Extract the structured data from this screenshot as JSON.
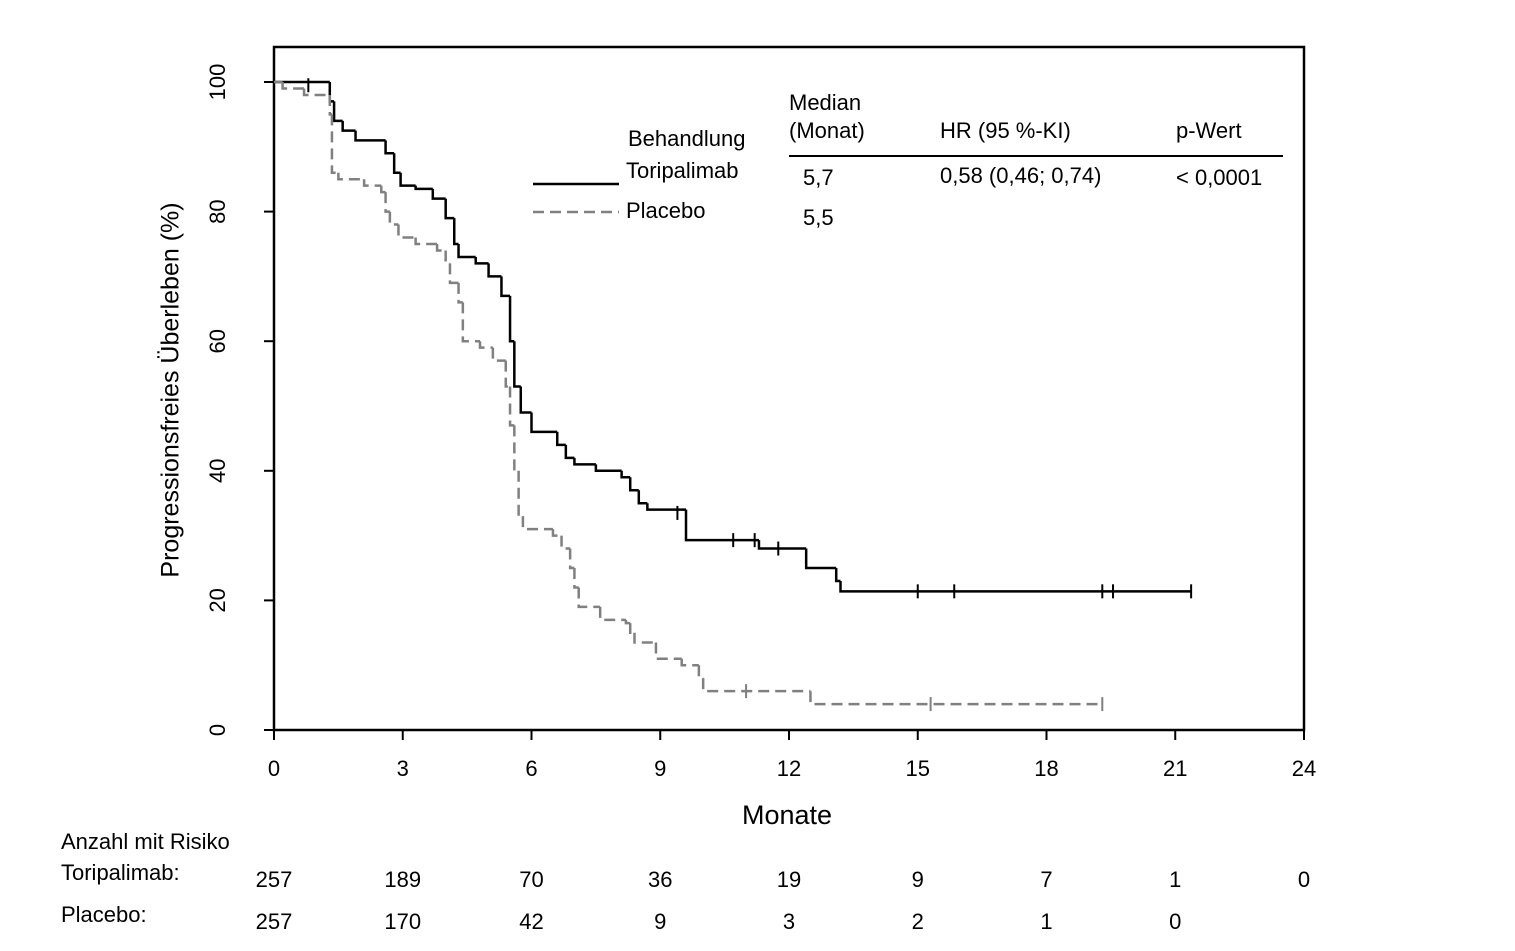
{
  "chart_data": {
    "type": "km",
    "ylabel": "Progressionsfreies Überleben (%)",
    "xlabel": "Monate",
    "xlim": [
      0,
      24
    ],
    "ylim": [
      0,
      105.4
    ],
    "xticks": [
      0,
      3,
      6,
      9,
      12,
      15,
      18,
      21,
      24
    ],
    "yticks": [
      0,
      20,
      40,
      60,
      80,
      100
    ],
    "legend_title": "Behandlung",
    "median_header": [
      "Median",
      "(Monat)"
    ],
    "hr_header": "HR (95 %-KI)",
    "p_header": "p-Wert",
    "series": [
      {
        "name": "Toripalimab",
        "color": "#000000",
        "dashed": false,
        "median": "5,7",
        "hr": "0,58 (0,46; 0,74)",
        "p": "< 0,0001",
        "x": [
          0,
          1.3,
          1.4,
          1.6,
          1.9,
          2.6,
          2.8,
          2.95,
          3.3,
          3.7,
          4.0,
          4.2,
          4.3,
          4.7,
          5.0,
          5.3,
          5.5,
          5.6,
          5.75,
          6.0,
          6.6,
          6.8,
          7.0,
          7.5,
          8.1,
          8.3,
          8.5,
          8.7,
          9.6,
          11.3,
          12.4,
          13.1,
          13.2,
          21.37
        ],
        "values": [
          100,
          97,
          94,
          92.5,
          91,
          89,
          86,
          84,
          83.5,
          82,
          79,
          75,
          73,
          72,
          70,
          67,
          60,
          53,
          49,
          46,
          44,
          42,
          41,
          40,
          39,
          37,
          35,
          34,
          29.3,
          28,
          25,
          23,
          21.4,
          21.4
        ],
        "censor_x": [
          0.8,
          9.4,
          10.7,
          11.2,
          11.75,
          15.0,
          15.85,
          19.3,
          19.55,
          21.37
        ],
        "censor_values": [
          99.5,
          33.5,
          29.3,
          29.3,
          28,
          21.4,
          21.4,
          21.4,
          21.4,
          21.4
        ]
      },
      {
        "name": "Placebo",
        "color": "#808080",
        "dashed": true,
        "median": "5,5",
        "x": [
          0,
          0.2,
          0.7,
          1.3,
          1.35,
          1.5,
          2.1,
          2.5,
          2.6,
          2.7,
          2.9,
          3.3,
          3.8,
          4.0,
          4.1,
          4.3,
          4.4,
          4.8,
          5.1,
          5.4,
          5.5,
          5.6,
          5.7,
          5.8,
          6.5,
          6.7,
          6.9,
          7.0,
          7.1,
          7.6,
          8.2,
          8.3,
          8.4,
          8.9,
          9.5,
          9.9,
          10.0,
          12.5,
          19.3
        ],
        "values": [
          100,
          99,
          98,
          95,
          86,
          85,
          84,
          83,
          80,
          78,
          76,
          75,
          74,
          72,
          69,
          66,
          60,
          59,
          57,
          53,
          47,
          40,
          33,
          31,
          30,
          28,
          25,
          22,
          19,
          17,
          16.5,
          15,
          13.5,
          11,
          10,
          8,
          6,
          4,
          4
        ],
        "censor_x": [
          11.0,
          15.3,
          19.3
        ],
        "censor_values": [
          6,
          4,
          4
        ]
      }
    ],
    "risk_table": {
      "title": "Anzahl mit Risiko",
      "x": [
        0,
        3,
        6,
        9,
        12,
        15,
        18,
        21,
        24
      ],
      "rows": [
        {
          "label": "Toripalimab:",
          "counts": [
            257,
            189,
            70,
            36,
            19,
            9,
            7,
            1,
            0
          ]
        },
        {
          "label": "Placebo:",
          "counts": [
            257,
            170,
            42,
            9,
            3,
            2,
            1,
            0,
            null
          ]
        }
      ]
    }
  }
}
